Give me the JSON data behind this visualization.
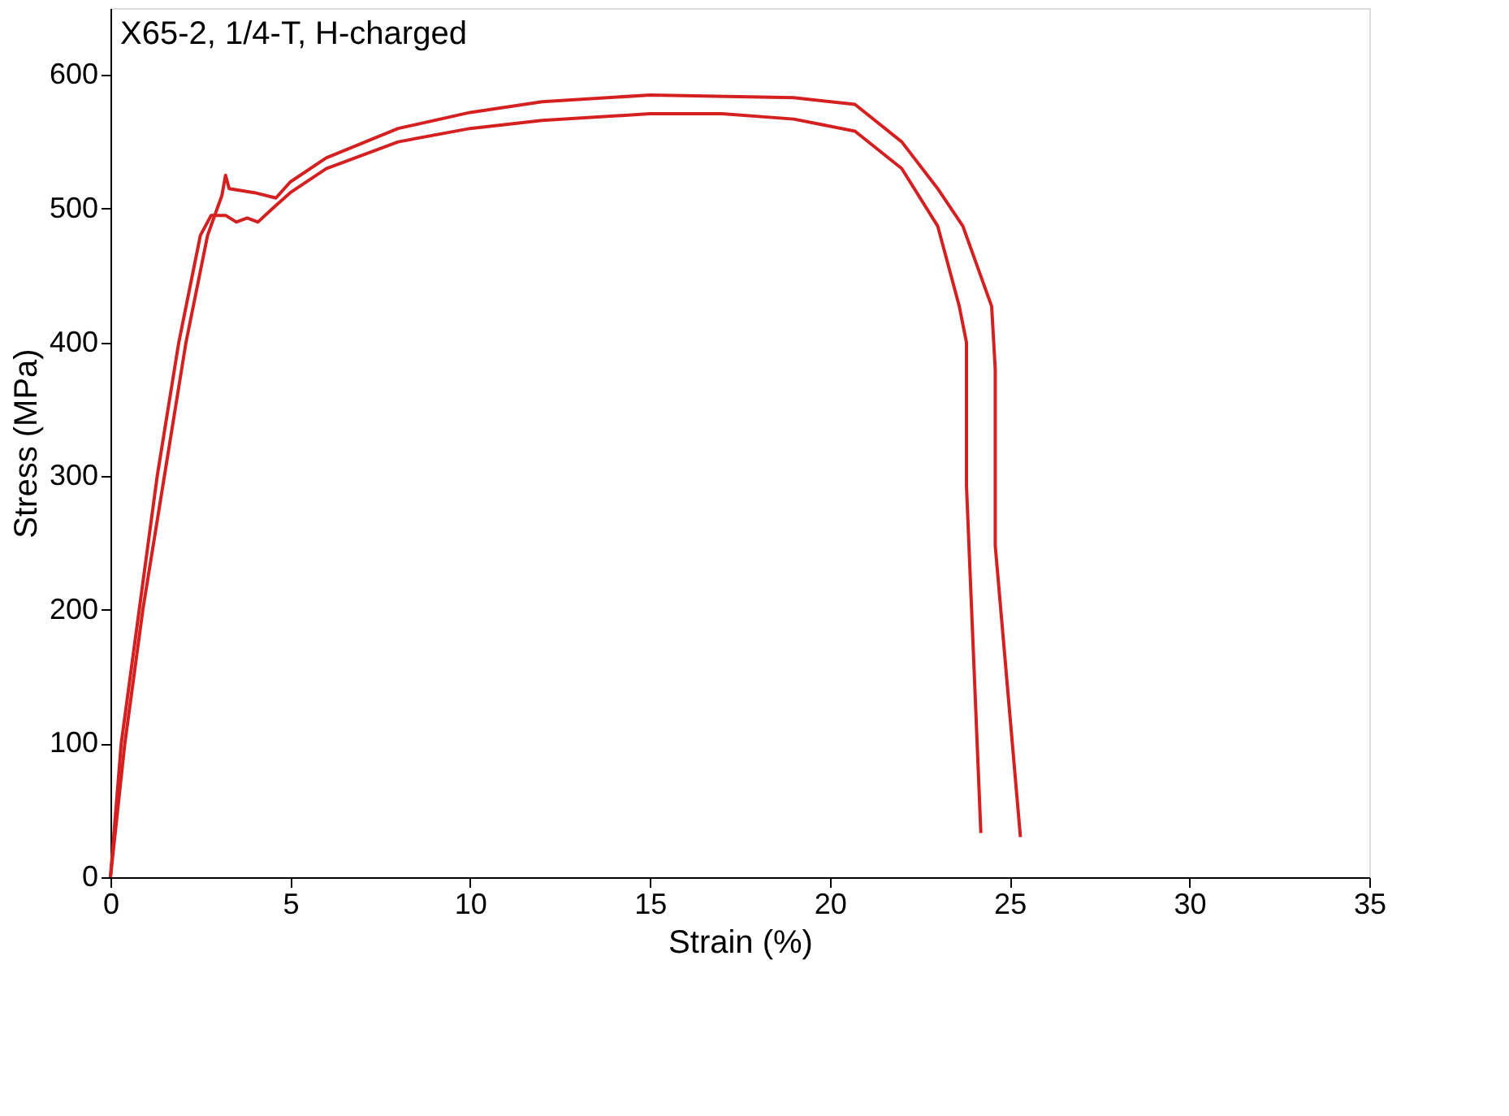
{
  "chart_data": {
    "type": "line",
    "xlabel": "Strain (%)",
    "ylabel": "Stress (MPa)",
    "annotations": [
      "X65-2, 1/4-T, H-charged"
    ],
    "xlim": [
      0,
      35
    ],
    "xticks": [
      0,
      5,
      10,
      15,
      20,
      25,
      30,
      35
    ],
    "ylim": [
      0,
      650
    ],
    "yticks": [
      0,
      100,
      200,
      300,
      400,
      500,
      600
    ],
    "grid": false,
    "legend": false,
    "marker": "none",
    "line_style": "solid",
    "series": [
      {
        "color": "#d42020",
        "x": [
          0,
          0.3,
          0.8,
          1.3,
          1.9,
          2.5,
          2.8,
          3.2,
          3.5,
          3.8,
          4.1,
          4.5,
          5,
          6,
          8,
          10,
          12,
          15,
          17,
          19,
          20.7,
          22,
          23,
          23.6,
          23.8,
          23.8,
          24.2
        ],
        "values": [
          0,
          100,
          200,
          300,
          400,
          480,
          495,
          495,
          490,
          493,
          490,
          500,
          512,
          530,
          550,
          560,
          566,
          571,
          571,
          567,
          558,
          530,
          487,
          427,
          400,
          293,
          33
        ]
      },
      {
        "color": "#d42020",
        "x": [
          0,
          0.4,
          0.9,
          1.5,
          2.1,
          2.7,
          3.1,
          3.2,
          3.3,
          4,
          4.6,
          5,
          6,
          8,
          10,
          12,
          15,
          19,
          20.7,
          22,
          23,
          23.7,
          24.5,
          24.6,
          24.6,
          25.3
        ],
        "values": [
          0,
          100,
          200,
          300,
          400,
          480,
          510,
          525,
          515,
          512,
          508,
          520,
          538,
          560,
          572,
          580,
          585,
          583,
          578,
          550,
          515,
          487,
          427,
          380,
          248,
          30
        ]
      }
    ]
  }
}
